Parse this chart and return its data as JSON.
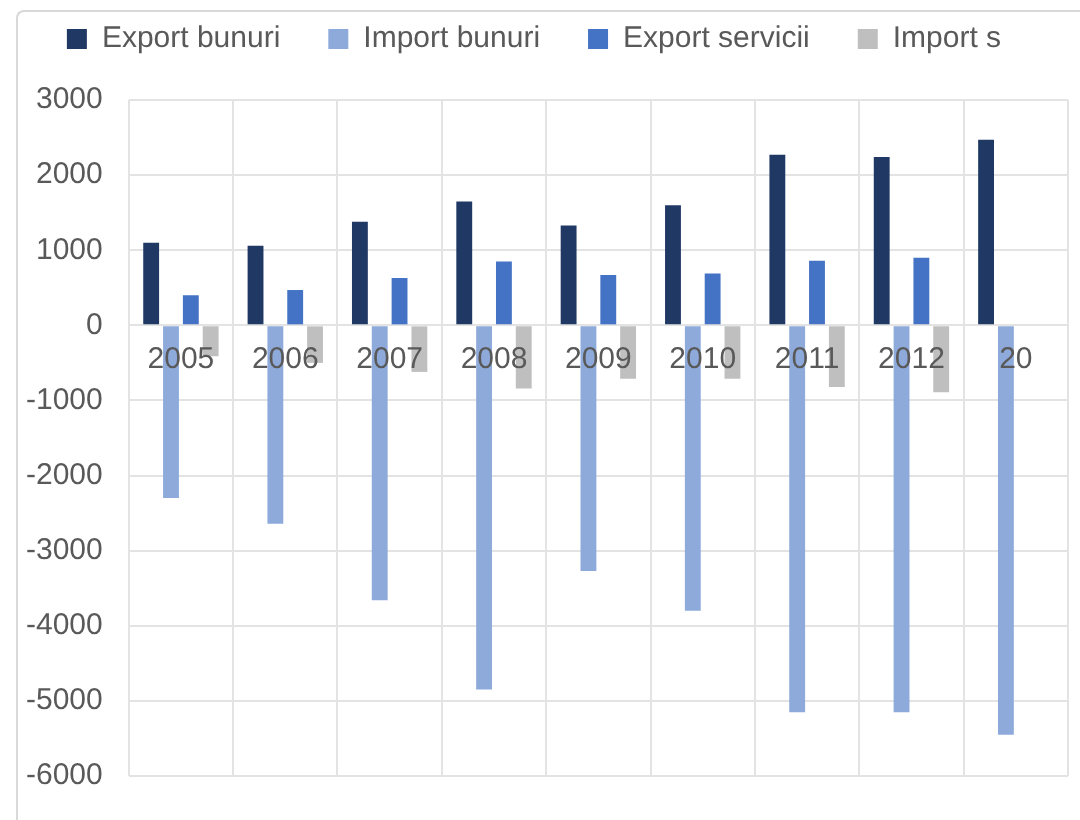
{
  "chart_data": {
    "type": "bar",
    "categories": [
      "2005",
      "2006",
      "2007",
      "2008",
      "2009",
      "2010",
      "2011",
      "2012",
      "20"
    ],
    "series": [
      {
        "name": "Export bunuri",
        "color": "#1f3864",
        "values": [
          1100,
          1060,
          1380,
          1650,
          1330,
          1600,
          2270,
          2240,
          2470
        ]
      },
      {
        "name": "Import bunuri",
        "color": "#8eaadb",
        "values": [
          -2300,
          -2640,
          -3660,
          -4850,
          -3270,
          -3800,
          -5150,
          -5150,
          -5450
        ]
      },
      {
        "name": "Export servicii",
        "color": "#4472c4",
        "values": [
          400,
          470,
          630,
          850,
          670,
          690,
          860,
          900,
          null
        ]
      },
      {
        "name": "Import s",
        "color": "#bfbfbf",
        "values": [
          -410,
          -500,
          -620,
          -840,
          -710,
          -710,
          -820,
          -890,
          null
        ]
      }
    ],
    "ylim": [
      -6000,
      3000
    ],
    "yticks": [
      -6000,
      -5000,
      -4000,
      -3000,
      -2000,
      -1000,
      0,
      1000,
      2000,
      3000
    ],
    "grid": true,
    "legend": "top"
  }
}
